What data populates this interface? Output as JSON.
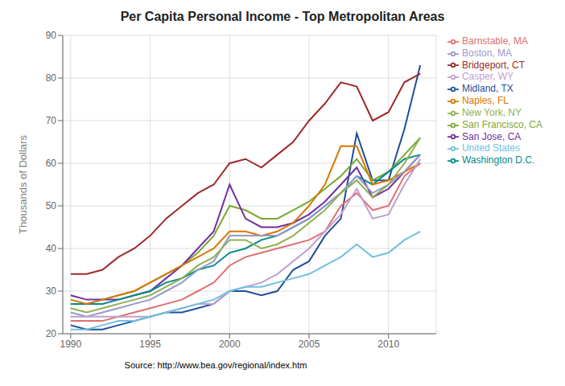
{
  "chart_data": {
    "type": "line",
    "title": "Per Capita Personal Income - Top Metropolitan Areas",
    "y_label": "Thousands of Dollars",
    "annotations": [
      "Source: http://www.bea.gov/regional/index.htm"
    ],
    "x": [
      1990,
      1991,
      1992,
      1993,
      1994,
      1995,
      1996,
      1997,
      1998,
      1999,
      2000,
      2001,
      2002,
      2003,
      2004,
      2005,
      2006,
      2007,
      2008,
      2009,
      2010,
      2011,
      2012
    ],
    "series": [
      {
        "name": "Midland, TX",
        "color": "#1F4E9A",
        "values": [
          22,
          21,
          21,
          22,
          23,
          24,
          25,
          25,
          26,
          27,
          30,
          30,
          29,
          30,
          35,
          37,
          43,
          47,
          67,
          56,
          56,
          68,
          83
        ]
      },
      {
        "name": "Bridgeport, CT",
        "color": "#9E2A2A",
        "values": [
          34,
          34,
          35,
          38,
          40,
          43,
          47,
          50,
          53,
          55,
          60,
          61,
          59,
          62,
          65,
          70,
          74,
          79,
          78,
          70,
          72,
          79,
          81
        ]
      },
      {
        "name": "San Francisco, CA",
        "color": "#7CA832",
        "values": [
          27,
          27,
          28,
          29,
          30,
          32,
          34,
          36,
          39,
          43,
          50,
          49,
          47,
          47,
          49,
          51,
          54,
          57,
          61,
          56,
          58,
          62,
          66
        ]
      },
      {
        "name": "San Jose, CA",
        "color": "#7030A0",
        "values": [
          29,
          28,
          28,
          28,
          29,
          30,
          33,
          36,
          40,
          44,
          55,
          47,
          45,
          45,
          46,
          48,
          51,
          55,
          59,
          52,
          54,
          58,
          62
        ]
      },
      {
        "name": "Washington D.C.",
        "color": "#008B8B",
        "values": [
          27,
          27,
          27,
          28,
          29,
          30,
          32,
          33,
          35,
          36,
          39,
          40,
          42,
          43,
          45,
          47,
          50,
          53,
          57,
          55,
          58,
          61,
          62
        ]
      },
      {
        "name": "Naples, FL",
        "color": "#D87800",
        "values": [
          28,
          27,
          28,
          29,
          30,
          32,
          34,
          36,
          38,
          40,
          44,
          44,
          43,
          44,
          46,
          50,
          55,
          64,
          64,
          55,
          56,
          58,
          60
        ]
      },
      {
        "name": "Boston, MA",
        "color": "#9999CC",
        "values": [
          25,
          24,
          25,
          26,
          27,
          28,
          30,
          32,
          35,
          37,
          43,
          43,
          43,
          43,
          45,
          47,
          50,
          53,
          57,
          53,
          55,
          58,
          62
        ]
      },
      {
        "name": "Barnstable, MA",
        "color": "#E07070",
        "values": [
          23,
          23,
          23,
          24,
          25,
          26,
          27,
          28,
          30,
          32,
          36,
          38,
          39,
          40,
          41,
          42,
          44,
          50,
          53,
          49,
          50,
          57,
          60
        ]
      },
      {
        "name": "New York, NY",
        "color": "#90B050",
        "values": [
          26,
          25,
          26,
          27,
          28,
          29,
          31,
          33,
          36,
          38,
          42,
          42,
          40,
          41,
          43,
          46,
          49,
          53,
          56,
          52,
          55,
          60,
          66
        ]
      },
      {
        "name": "Casper, WY",
        "color": "#BFA0D0",
        "values": [
          24,
          24,
          24,
          24,
          24,
          24,
          25,
          26,
          27,
          27,
          30,
          31,
          32,
          34,
          37,
          40,
          44,
          48,
          54,
          47,
          48,
          55,
          61
        ]
      },
      {
        "name": "United States",
        "color": "#70C0DD",
        "values": [
          21,
          21,
          22,
          23,
          23,
          24,
          25,
          26,
          27,
          28,
          30,
          31,
          31,
          32,
          33,
          34,
          36,
          38,
          41,
          38,
          39,
          42,
          44
        ]
      }
    ],
    "xlim": [
      1989.5,
      2013.0
    ],
    "ylim": [
      20,
      90
    ],
    "xticks": [
      1990,
      1995,
      2000,
      2005,
      2010
    ],
    "yticks": [
      20,
      30,
      40,
      50,
      60,
      70,
      80,
      90
    ],
    "grid": true,
    "legend": "right"
  }
}
